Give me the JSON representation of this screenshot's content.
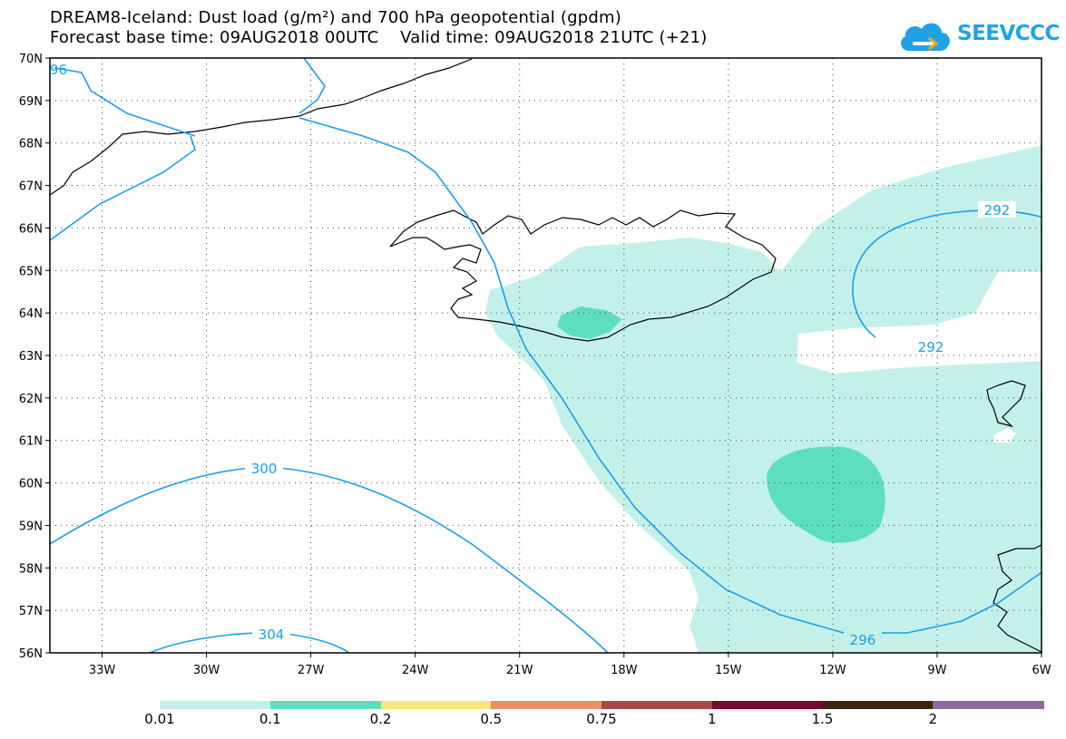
{
  "title_line1": "DREAM8-Iceland: Dust load (g/m²) and 700 hPa geopotential (gpdm)",
  "title_line2": "Forecast base time: 09AUG2018 00UTC    Valid time: 09AUG2018 21UTC (+21)",
  "logo_text": "SEEVCCC",
  "map": {
    "lat_labels": [
      "70N",
      "69N",
      "68N",
      "67N",
      "66N",
      "65N",
      "64N",
      "63N",
      "62N",
      "61N",
      "60N",
      "59N",
      "58N",
      "57N",
      "56N"
    ],
    "lon_labels": [
      "33W",
      "30W",
      "27W",
      "24W",
      "21W",
      "18W",
      "15W",
      "12W",
      "9W",
      "6W"
    ],
    "contour_labels": {
      "c96": "96",
      "c292a": "292",
      "c292b": "292",
      "c296": "296",
      "c300": "300",
      "c304": "304"
    },
    "colors": {
      "dust_light": "#c4f0ea",
      "dust_medium": "#5ddfbd",
      "contour": "#1aa0e8",
      "coast": "#000000"
    }
  },
  "colorbar": {
    "colors": [
      "#c4f0ea",
      "#5ddfbd",
      "#f5e67a",
      "#e8906a",
      "#a44a48",
      "#7a0a2a",
      "#3a2412",
      "#8c6a9a"
    ],
    "labels": [
      "0.01",
      "0.1",
      "0.2",
      "0.5",
      "0.75",
      "1",
      "1.5",
      "2"
    ]
  }
}
